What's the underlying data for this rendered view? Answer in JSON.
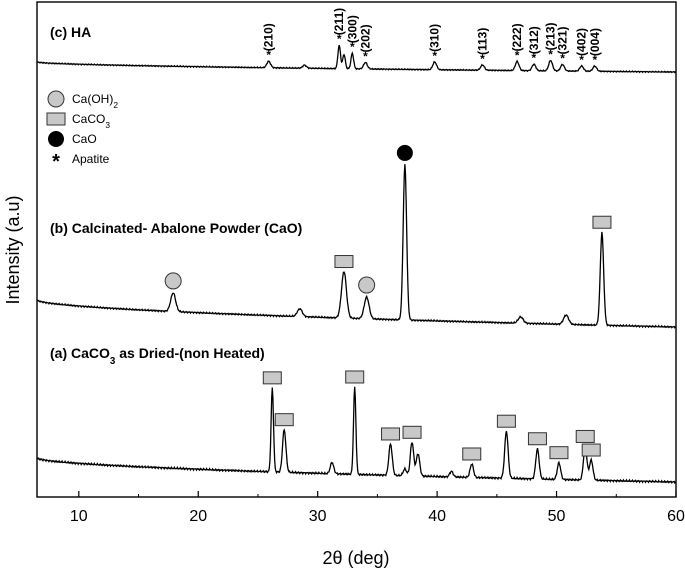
{
  "chart_data": {
    "type": "line",
    "xlabel": "2θ (deg)",
    "ylabel": "Intensity (a.u)",
    "xlim": [
      6.5,
      60
    ],
    "xticks": [
      10,
      20,
      30,
      40,
      50,
      60
    ],
    "grid": false,
    "legend": {
      "placement": "upper-left",
      "items": [
        {
          "marker": "circle-grey",
          "label": "Ca(OH)",
          "sub": "2"
        },
        {
          "marker": "rect-grey",
          "label": "CaCO",
          "sub": "3"
        },
        {
          "marker": "circle-black",
          "label": "CaO",
          "sub": ""
        },
        {
          "marker": "asterisk",
          "label": "Apatite",
          "sub": ""
        }
      ]
    },
    "panels": [
      {
        "id": "c",
        "label": "(c) HA",
        "peaks": [
          {
            "x": 25.9,
            "h": 0.25,
            "label": "(210)"
          },
          {
            "x": 28.9,
            "h": 0.12,
            "label": ""
          },
          {
            "x": 31.8,
            "h": 0.9,
            "label": "(211)"
          },
          {
            "x": 32.2,
            "h": 0.55,
            "label": ""
          },
          {
            "x": 32.9,
            "h": 0.6,
            "label": "(300)"
          },
          {
            "x": 34.0,
            "h": 0.25,
            "label": "(202)"
          },
          {
            "x": 39.8,
            "h": 0.3,
            "label": "(310)"
          },
          {
            "x": 43.8,
            "h": 0.2,
            "label": "(113)"
          },
          {
            "x": 46.7,
            "h": 0.35,
            "label": "(222)"
          },
          {
            "x": 48.1,
            "h": 0.25,
            "label": "(312)"
          },
          {
            "x": 49.5,
            "h": 0.4,
            "label": "(213)"
          },
          {
            "x": 50.5,
            "h": 0.25,
            "label": "(321)"
          },
          {
            "x": 52.1,
            "h": 0.2,
            "label": "(402)"
          },
          {
            "x": 53.2,
            "h": 0.2,
            "label": "(004)"
          }
        ]
      },
      {
        "id": "b",
        "label": "(b) Calcinated- Abalone Powder (CaO)",
        "peaks": [
          {
            "x": 17.9,
            "h": 0.12,
            "marker": "circle-grey"
          },
          {
            "x": 28.5,
            "h": 0.05
          },
          {
            "x": 32.2,
            "h": 0.3,
            "marker": "rect-grey"
          },
          {
            "x": 34.1,
            "h": 0.14,
            "marker": "circle-grey"
          },
          {
            "x": 37.3,
            "h": 1.0,
            "marker": "circle-black"
          },
          {
            "x": 47.0,
            "h": 0.04
          },
          {
            "x": 50.8,
            "h": 0.06
          },
          {
            "x": 53.8,
            "h": 0.6,
            "marker": "rect-grey"
          }
        ]
      },
      {
        "id": "a",
        "label": "(a) CaCO",
        "label_sub": "3",
        "label_tail": " as Dried-(non Heated)",
        "peaks": [
          {
            "x": 26.2,
            "h": 0.75,
            "marker": "rect-grey"
          },
          {
            "x": 27.2,
            "h": 0.38,
            "marker": "rect-grey"
          },
          {
            "x": 31.2,
            "h": 0.1
          },
          {
            "x": 33.1,
            "h": 0.78,
            "marker": "rect-grey"
          },
          {
            "x": 36.1,
            "h": 0.28,
            "marker": "rect-grey"
          },
          {
            "x": 37.3,
            "h": 0.06
          },
          {
            "x": 37.9,
            "h": 0.3,
            "marker": "rect-grey"
          },
          {
            "x": 38.4,
            "h": 0.2
          },
          {
            "x": 41.2,
            "h": 0.05
          },
          {
            "x": 42.9,
            "h": 0.12,
            "marker": "rect-grey"
          },
          {
            "x": 45.8,
            "h": 0.42,
            "marker": "rect-grey"
          },
          {
            "x": 48.4,
            "h": 0.27,
            "marker": "rect-grey"
          },
          {
            "x": 50.2,
            "h": 0.15,
            "marker": "rect-grey"
          },
          {
            "x": 52.4,
            "h": 0.3,
            "marker": "rect-grey"
          },
          {
            "x": 52.9,
            "h": 0.18,
            "marker": "rect-grey"
          }
        ]
      }
    ]
  }
}
